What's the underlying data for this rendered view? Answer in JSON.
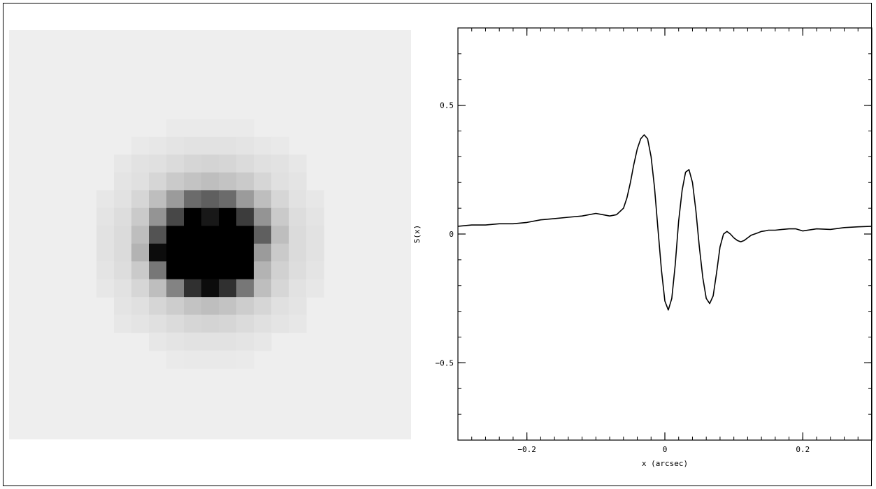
{
  "image": {
    "grid_size": 23,
    "background_color": "#eeeeee",
    "pixels": [
      {
        "c": 9,
        "r": 5,
        "v": 0.015
      },
      {
        "c": 10,
        "r": 5,
        "v": 0.015
      },
      {
        "c": 11,
        "r": 5,
        "v": 0.015
      },
      {
        "c": 12,
        "r": 5,
        "v": 0.015
      },
      {
        "c": 13,
        "r": 5,
        "v": 0.015
      },
      {
        "c": 7,
        "r": 6,
        "v": 0.02
      },
      {
        "c": 8,
        "r": 6,
        "v": 0.03
      },
      {
        "c": 9,
        "r": 6,
        "v": 0.04
      },
      {
        "c": 10,
        "r": 6,
        "v": 0.05
      },
      {
        "c": 11,
        "r": 6,
        "v": 0.05
      },
      {
        "c": 12,
        "r": 6,
        "v": 0.05
      },
      {
        "c": 13,
        "r": 6,
        "v": 0.04
      },
      {
        "c": 14,
        "r": 6,
        "v": 0.03
      },
      {
        "c": 15,
        "r": 6,
        "v": 0.02
      },
      {
        "c": 6,
        "r": 7,
        "v": 0.03
      },
      {
        "c": 7,
        "r": 7,
        "v": 0.05
      },
      {
        "c": 8,
        "r": 7,
        "v": 0.06
      },
      {
        "c": 9,
        "r": 7,
        "v": 0.08
      },
      {
        "c": 10,
        "r": 7,
        "v": 0.1
      },
      {
        "c": 11,
        "r": 7,
        "v": 0.11
      },
      {
        "c": 12,
        "r": 7,
        "v": 0.1
      },
      {
        "c": 13,
        "r": 7,
        "v": 0.08
      },
      {
        "c": 14,
        "r": 7,
        "v": 0.06
      },
      {
        "c": 15,
        "r": 7,
        "v": 0.05
      },
      {
        "c": 16,
        "r": 7,
        "v": 0.03
      },
      {
        "c": 6,
        "r": 8,
        "v": 0.04
      },
      {
        "c": 7,
        "r": 8,
        "v": 0.06
      },
      {
        "c": 8,
        "r": 8,
        "v": 0.1
      },
      {
        "c": 9,
        "r": 8,
        "v": 0.15
      },
      {
        "c": 10,
        "r": 8,
        "v": 0.18
      },
      {
        "c": 11,
        "r": 8,
        "v": 0.2
      },
      {
        "c": 12,
        "r": 8,
        "v": 0.18
      },
      {
        "c": 13,
        "r": 8,
        "v": 0.15
      },
      {
        "c": 14,
        "r": 8,
        "v": 0.1
      },
      {
        "c": 15,
        "r": 8,
        "v": 0.06
      },
      {
        "c": 16,
        "r": 8,
        "v": 0.04
      },
      {
        "c": 5,
        "r": 9,
        "v": 0.03
      },
      {
        "c": 6,
        "r": 9,
        "v": 0.05
      },
      {
        "c": 7,
        "r": 9,
        "v": 0.1
      },
      {
        "c": 8,
        "r": 9,
        "v": 0.2
      },
      {
        "c": 9,
        "r": 9,
        "v": 0.35
      },
      {
        "c": 10,
        "r": 9,
        "v": 0.55
      },
      {
        "c": 11,
        "r": 9,
        "v": 0.6
      },
      {
        "c": 12,
        "r": 9,
        "v": 0.55
      },
      {
        "c": 13,
        "r": 9,
        "v": 0.35
      },
      {
        "c": 14,
        "r": 9,
        "v": 0.2
      },
      {
        "c": 15,
        "r": 9,
        "v": 0.1
      },
      {
        "c": 16,
        "r": 9,
        "v": 0.05
      },
      {
        "c": 17,
        "r": 9,
        "v": 0.03
      },
      {
        "c": 5,
        "r": 10,
        "v": 0.04
      },
      {
        "c": 6,
        "r": 10,
        "v": 0.07
      },
      {
        "c": 7,
        "r": 10,
        "v": 0.15
      },
      {
        "c": 8,
        "r": 10,
        "v": 0.38
      },
      {
        "c": 9,
        "r": 10,
        "v": 0.7
      },
      {
        "c": 10,
        "r": 10,
        "v": 1.0
      },
      {
        "c": 11,
        "r": 10,
        "v": 0.9
      },
      {
        "c": 12,
        "r": 10,
        "v": 1.0
      },
      {
        "c": 13,
        "r": 10,
        "v": 0.75
      },
      {
        "c": 14,
        "r": 10,
        "v": 0.38
      },
      {
        "c": 15,
        "r": 10,
        "v": 0.15
      },
      {
        "c": 16,
        "r": 10,
        "v": 0.07
      },
      {
        "c": 17,
        "r": 10,
        "v": 0.04
      },
      {
        "c": 5,
        "r": 11,
        "v": 0.05
      },
      {
        "c": 6,
        "r": 11,
        "v": 0.08
      },
      {
        "c": 7,
        "r": 11,
        "v": 0.2
      },
      {
        "c": 8,
        "r": 11,
        "v": 0.65
      },
      {
        "c": 9,
        "r": 11,
        "v": 1.0
      },
      {
        "c": 10,
        "r": 11,
        "v": 1.0
      },
      {
        "c": 11,
        "r": 11,
        "v": 1.0
      },
      {
        "c": 12,
        "r": 11,
        "v": 1.0
      },
      {
        "c": 13,
        "r": 11,
        "v": 1.0
      },
      {
        "c": 14,
        "r": 11,
        "v": 0.6
      },
      {
        "c": 15,
        "r": 11,
        "v": 0.2
      },
      {
        "c": 16,
        "r": 11,
        "v": 0.08
      },
      {
        "c": 17,
        "r": 11,
        "v": 0.05
      },
      {
        "c": 5,
        "r": 12,
        "v": 0.05
      },
      {
        "c": 6,
        "r": 12,
        "v": 0.08
      },
      {
        "c": 7,
        "r": 12,
        "v": 0.25
      },
      {
        "c": 8,
        "r": 12,
        "v": 0.95
      },
      {
        "c": 9,
        "r": 12,
        "v": 1.0
      },
      {
        "c": 10,
        "r": 12,
        "v": 1.0
      },
      {
        "c": 11,
        "r": 12,
        "v": 1.0
      },
      {
        "c": 12,
        "r": 12,
        "v": 1.0
      },
      {
        "c": 13,
        "r": 12,
        "v": 1.0
      },
      {
        "c": 14,
        "r": 12,
        "v": 0.35
      },
      {
        "c": 15,
        "r": 12,
        "v": 0.15
      },
      {
        "c": 16,
        "r": 12,
        "v": 0.08
      },
      {
        "c": 17,
        "r": 12,
        "v": 0.05
      },
      {
        "c": 5,
        "r": 13,
        "v": 0.04
      },
      {
        "c": 6,
        "r": 13,
        "v": 0.07
      },
      {
        "c": 7,
        "r": 13,
        "v": 0.15
      },
      {
        "c": 8,
        "r": 13,
        "v": 0.5
      },
      {
        "c": 9,
        "r": 13,
        "v": 1.0
      },
      {
        "c": 10,
        "r": 13,
        "v": 1.0
      },
      {
        "c": 11,
        "r": 13,
        "v": 1.0
      },
      {
        "c": 12,
        "r": 13,
        "v": 1.0
      },
      {
        "c": 13,
        "r": 13,
        "v": 1.0
      },
      {
        "c": 14,
        "r": 13,
        "v": 0.25
      },
      {
        "c": 15,
        "r": 13,
        "v": 0.12
      },
      {
        "c": 16,
        "r": 13,
        "v": 0.07
      },
      {
        "c": 17,
        "r": 13,
        "v": 0.04
      },
      {
        "c": 5,
        "r": 14,
        "v": 0.03
      },
      {
        "c": 6,
        "r": 14,
        "v": 0.05
      },
      {
        "c": 7,
        "r": 14,
        "v": 0.1
      },
      {
        "c": 8,
        "r": 14,
        "v": 0.2
      },
      {
        "c": 9,
        "r": 14,
        "v": 0.45
      },
      {
        "c": 10,
        "r": 14,
        "v": 0.8
      },
      {
        "c": 11,
        "r": 14,
        "v": 0.95
      },
      {
        "c": 12,
        "r": 14,
        "v": 0.8
      },
      {
        "c": 13,
        "r": 14,
        "v": 0.5
      },
      {
        "c": 14,
        "r": 14,
        "v": 0.2
      },
      {
        "c": 15,
        "r": 14,
        "v": 0.1
      },
      {
        "c": 16,
        "r": 14,
        "v": 0.05
      },
      {
        "c": 17,
        "r": 14,
        "v": 0.03
      },
      {
        "c": 6,
        "r": 15,
        "v": 0.04
      },
      {
        "c": 7,
        "r": 15,
        "v": 0.06
      },
      {
        "c": 8,
        "r": 15,
        "v": 0.1
      },
      {
        "c": 9,
        "r": 15,
        "v": 0.14
      },
      {
        "c": 10,
        "r": 15,
        "v": 0.18
      },
      {
        "c": 11,
        "r": 15,
        "v": 0.2
      },
      {
        "c": 12,
        "r": 15,
        "v": 0.18
      },
      {
        "c": 13,
        "r": 15,
        "v": 0.14
      },
      {
        "c": 14,
        "r": 15,
        "v": 0.1
      },
      {
        "c": 15,
        "r": 15,
        "v": 0.06
      },
      {
        "c": 16,
        "r": 15,
        "v": 0.04
      },
      {
        "c": 6,
        "r": 16,
        "v": 0.03
      },
      {
        "c": 7,
        "r": 16,
        "v": 0.04
      },
      {
        "c": 8,
        "r": 16,
        "v": 0.06
      },
      {
        "c": 9,
        "r": 16,
        "v": 0.08
      },
      {
        "c": 10,
        "r": 16,
        "v": 0.1
      },
      {
        "c": 11,
        "r": 16,
        "v": 0.11
      },
      {
        "c": 12,
        "r": 16,
        "v": 0.1
      },
      {
        "c": 13,
        "r": 16,
        "v": 0.08
      },
      {
        "c": 14,
        "r": 16,
        "v": 0.06
      },
      {
        "c": 15,
        "r": 16,
        "v": 0.04
      },
      {
        "c": 16,
        "r": 16,
        "v": 0.03
      },
      {
        "c": 8,
        "r": 17,
        "v": 0.03
      },
      {
        "c": 9,
        "r": 17,
        "v": 0.04
      },
      {
        "c": 10,
        "r": 17,
        "v": 0.05
      },
      {
        "c": 11,
        "r": 17,
        "v": 0.05
      },
      {
        "c": 12,
        "r": 17,
        "v": 0.05
      },
      {
        "c": 13,
        "r": 17,
        "v": 0.04
      },
      {
        "c": 14,
        "r": 17,
        "v": 0.03
      },
      {
        "c": 9,
        "r": 18,
        "v": 0.015
      },
      {
        "c": 10,
        "r": 18,
        "v": 0.02
      },
      {
        "c": 11,
        "r": 18,
        "v": 0.02
      },
      {
        "c": 12,
        "r": 18,
        "v": 0.02
      },
      {
        "c": 13,
        "r": 18,
        "v": 0.015
      }
    ]
  },
  "chart_data": {
    "type": "line",
    "xlabel": "x (arcsec)",
    "ylabel": "S(x)",
    "xlim": [
      -0.3,
      0.3
    ],
    "ylim": [
      -0.8,
      0.8
    ],
    "xticks": [
      -0.2,
      0,
      0.2
    ],
    "xtick_labels": [
      "−0.2",
      "0",
      "0.2"
    ],
    "yticks": [
      -0.5,
      0,
      0.5
    ],
    "ytick_labels": [
      "−0.5",
      "0",
      "0.5"
    ],
    "minor_step_x": 0.02,
    "minor_step_y": 0.1,
    "line_color": "#000000",
    "grid": false,
    "series": [
      {
        "x": [
          -0.3,
          -0.28,
          -0.26,
          -0.24,
          -0.22,
          -0.2,
          -0.18,
          -0.16,
          -0.14,
          -0.12,
          -0.1,
          -0.09,
          -0.08,
          -0.07,
          -0.06,
          -0.055,
          -0.05,
          -0.045,
          -0.04,
          -0.035,
          -0.03,
          -0.025,
          -0.02,
          -0.015,
          -0.01,
          -0.005,
          0.0,
          0.005,
          0.01,
          0.015,
          0.02,
          0.025,
          0.03,
          0.035,
          0.04,
          0.045,
          0.05,
          0.055,
          0.06,
          0.065,
          0.07,
          0.075,
          0.08,
          0.085,
          0.09,
          0.095,
          0.1,
          0.105,
          0.11,
          0.115,
          0.12,
          0.125,
          0.13,
          0.135,
          0.14,
          0.145,
          0.15,
          0.16,
          0.17,
          0.18,
          0.19,
          0.2,
          0.22,
          0.24,
          0.26,
          0.28,
          0.3
        ],
        "y": [
          0.03,
          0.035,
          0.035,
          0.04,
          0.04,
          0.045,
          0.055,
          0.06,
          0.065,
          0.07,
          0.08,
          0.075,
          0.07,
          0.075,
          0.1,
          0.14,
          0.2,
          0.27,
          0.33,
          0.37,
          0.385,
          0.37,
          0.3,
          0.18,
          0.02,
          -0.14,
          -0.26,
          -0.295,
          -0.25,
          -0.12,
          0.05,
          0.17,
          0.24,
          0.25,
          0.2,
          0.09,
          -0.05,
          -0.17,
          -0.25,
          -0.27,
          -0.24,
          -0.15,
          -0.05,
          0.0,
          0.01,
          0.0,
          -0.015,
          -0.025,
          -0.03,
          -0.025,
          -0.015,
          -0.005,
          0.0,
          0.005,
          0.01,
          0.012,
          0.015,
          0.015,
          0.018,
          0.02,
          0.02,
          0.012,
          0.02,
          0.018,
          0.025,
          0.028,
          0.03
        ]
      }
    ]
  }
}
